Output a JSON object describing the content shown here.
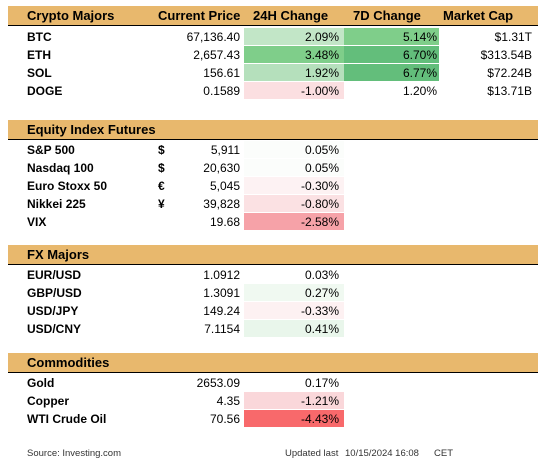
{
  "crypto": {
    "headers": {
      "name": "Crypto Majors",
      "price": "Current Price",
      "change24": "24H Change",
      "change7d": "7D Change",
      "mcap": "Market Cap"
    },
    "rows": [
      {
        "name": "BTC",
        "price": "67,136.40",
        "change24": "2.09%",
        "c24_bg": "#c2e6c7",
        "change7d": "5.14%",
        "c7_bg": "#7fce8a",
        "mcap": "$1.31T"
      },
      {
        "name": "ETH",
        "price": "2,657.43",
        "change24": "3.48%",
        "c24_bg": "#7fce8a",
        "change7d": "6.70%",
        "c7_bg": "#63be7b",
        "mcap": "$313.54B"
      },
      {
        "name": "SOL",
        "price": "156.61",
        "change24": "1.92%",
        "c24_bg": "#b5e0bc",
        "change7d": "6.77%",
        "c7_bg": "#63be7b",
        "mcap": "$72.24B"
      },
      {
        "name": "DOGE",
        "price": "0.1589",
        "change24": "-1.00%",
        "c24_bg": "#fbdfe1",
        "change7d": "1.20%",
        "c7_bg": "#ffffff",
        "mcap": "$13.71B"
      }
    ]
  },
  "equity": {
    "title": "Equity Index Futures",
    "rows": [
      {
        "name": "S&P 500",
        "sym": "$",
        "price": "5,911",
        "change": "0.05%",
        "bg": "#fbfdfb"
      },
      {
        "name": "Nasdaq 100",
        "sym": "$",
        "price": "20,630",
        "change": "0.05%",
        "bg": "#fbfdfb"
      },
      {
        "name": "Euro Stoxx 50",
        "sym": "€",
        "price": "5,045",
        "change": "-0.30%",
        "bg": "#fdf2f3"
      },
      {
        "name": "Nikkei 225",
        "sym": "¥",
        "price": "39,828",
        "change": "-0.80%",
        "bg": "#fbe1e3"
      },
      {
        "name": "VIX",
        "sym": "",
        "price": "19.68",
        "change": "-2.58%",
        "bg": "#f6a2a8"
      }
    ]
  },
  "fx": {
    "title": "FX Majors",
    "rows": [
      {
        "name": "EUR/USD",
        "price": "1.0912",
        "change": "0.03%",
        "bg": "#ffffff"
      },
      {
        "name": "GBP/USD",
        "price": "1.3091",
        "change": "0.27%",
        "bg": "#f0f9f1"
      },
      {
        "name": "USD/JPY",
        "price": "149.24",
        "change": "-0.33%",
        "bg": "#fdf1f2"
      },
      {
        "name": "USD/CNY",
        "price": "7.1154",
        "change": "0.41%",
        "bg": "#e9f6eb"
      }
    ]
  },
  "commodities": {
    "title": "Commodities",
    "rows": [
      {
        "name": "Gold",
        "price": "2653.09",
        "change": "0.17%",
        "bg": "#ffffff"
      },
      {
        "name": "Copper",
        "price": "4.35",
        "change": "-1.21%",
        "bg": "#fad7da"
      },
      {
        "name": "WTI Crude Oil",
        "price": "70.56",
        "change": "-4.43%",
        "bg": "#f8696b"
      }
    ]
  },
  "footer": {
    "source": "Source: Investing.com",
    "updated_label": "Updated last",
    "updated_value": "10/15/2024 16:08",
    "tz": "CET"
  }
}
